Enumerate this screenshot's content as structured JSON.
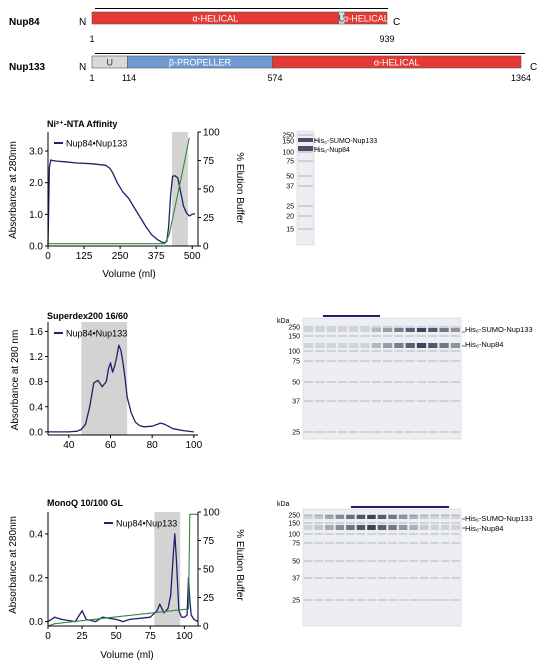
{
  "domains": {
    "nup84": {
      "name": "Nup84",
      "n_label": "N",
      "c_label": "C",
      "total_length": 939,
      "ticks": [
        "1",
        "939"
      ],
      "segments": [
        {
          "label": "α-HELICAL",
          "start": 1,
          "end": 785,
          "color": "#e53935"
        },
        {
          "label": "U",
          "start": 785,
          "end": 805,
          "color": "#d9d9d9"
        },
        {
          "label": "α-HELICAL",
          "start": 805,
          "end": 939,
          "color": "#e53935"
        }
      ]
    },
    "nup133": {
      "name": "Nup133",
      "n_label": "N",
      "c_label": "C",
      "total_length": 1364,
      "ticks": [
        "1",
        "114",
        "574",
        "1364"
      ],
      "segments": [
        {
          "label": "U",
          "start": 1,
          "end": 114,
          "color": "#d9d9d9"
        },
        {
          "label": "β-PROPELLER",
          "start": 114,
          "end": 574,
          "color": "#6f9bd1"
        },
        {
          "label": "α-HELICAL",
          "start": 574,
          "end": 1364,
          "color": "#e53935"
        }
      ]
    }
  },
  "chart_data": [
    {
      "type": "line",
      "title": "Ni²⁺-NTA Affinity",
      "xlabel": "Volume (ml)",
      "ylabel": "Absorbance at 280nm",
      "y2label": "% Elution Buffer",
      "xlim": [
        0,
        520
      ],
      "ylim": [
        0,
        3.6
      ],
      "y2lim": [
        0,
        100
      ],
      "xticks": [
        "0",
        "125",
        "250",
        "375",
        "500"
      ],
      "yticks": [
        "0.0",
        "1.0",
        "2.0",
        "3.0"
      ],
      "y2ticks": [
        "0",
        "25",
        "50",
        "75",
        "100"
      ],
      "legend": "top-left",
      "shaded_region": [
        430,
        485
      ],
      "series": [
        {
          "name": "Nup84•Nup133",
          "color": "#1f1f6b",
          "axis": "left",
          "x": [
            0,
            5,
            10,
            15,
            30,
            60,
            100,
            150,
            200,
            215,
            225,
            240,
            260,
            280,
            300,
            320,
            340,
            360,
            380,
            395,
            405,
            412,
            418,
            425,
            432,
            440,
            450,
            460,
            470,
            480,
            490,
            500,
            510
          ],
          "y": [
            0.05,
            2.5,
            2.72,
            2.7,
            2.68,
            2.66,
            2.62,
            2.6,
            2.55,
            2.45,
            2.3,
            2.0,
            1.7,
            1.5,
            1.2,
            0.9,
            0.6,
            0.35,
            0.2,
            0.12,
            0.1,
            0.15,
            0.6,
            1.6,
            2.2,
            2.22,
            2.15,
            1.7,
            1.25,
            1.05,
            0.95,
            1.0,
            1.02
          ]
        },
        {
          "name": "% Elution Buffer",
          "color": "#2e8b3c",
          "axis": "right",
          "x": [
            0,
            405,
            420,
            470,
            490
          ],
          "y": [
            2,
            2,
            10,
            70,
            95
          ]
        }
      ]
    },
    {
      "type": "line",
      "title": "Superdex200 16/60",
      "xlabel": "",
      "ylabel": "Absorbance at 280 nm",
      "xlim": [
        30,
        102
      ],
      "ylim": [
        -0.05,
        1.75
      ],
      "xticks": [
        "40",
        "60",
        "80",
        "100"
      ],
      "yticks": [
        "0.0",
        "0.4",
        "0.8",
        "1.2",
        "1.6"
      ],
      "legend": "top-left",
      "shaded_region": [
        46,
        68
      ],
      "series": [
        {
          "name": "Nup84•Nup133",
          "color": "#1f1f6b",
          "axis": "left",
          "x": [
            30,
            40,
            44,
            46,
            48,
            50,
            52,
            54,
            56,
            58,
            59,
            60,
            61,
            62,
            63,
            64,
            65,
            66,
            67,
            68,
            70,
            72,
            74,
            76,
            80,
            84,
            86,
            90,
            95,
            100
          ],
          "y": [
            0.0,
            0.0,
            0.01,
            0.04,
            0.12,
            0.4,
            0.78,
            0.82,
            0.72,
            0.8,
            1.0,
            1.1,
            0.95,
            1.05,
            1.2,
            1.38,
            1.3,
            1.1,
            0.85,
            0.55,
            0.3,
            0.15,
            0.1,
            0.08,
            0.09,
            0.14,
            0.12,
            0.05,
            0.02,
            0.0
          ]
        }
      ]
    },
    {
      "type": "line",
      "title": "MonoQ 10/100 GL",
      "xlabel": "Volume (ml)",
      "ylabel": "Absorbance at 280nm",
      "y2label": "% Elution Buffer",
      "xlim": [
        0,
        110
      ],
      "ylim": [
        -0.02,
        0.5
      ],
      "y2lim": [
        0,
        100
      ],
      "xticks": [
        "0",
        "25",
        "50",
        "75",
        "100"
      ],
      "yticks": [
        "0.0",
        "0.2",
        "0.4"
      ],
      "y2ticks": [
        "0",
        "25",
        "50",
        "75",
        "100"
      ],
      "legend": "top-right",
      "shaded_region": [
        78,
        97
      ],
      "series": [
        {
          "name": "Nup84•Nup133",
          "color": "#1f1f6b",
          "axis": "left",
          "x": [
            0,
            5,
            10,
            20,
            23,
            25,
            28,
            35,
            40,
            50,
            55,
            60,
            75,
            80,
            82,
            85,
            88,
            90,
            92,
            93,
            94,
            96,
            98,
            100,
            102,
            103,
            104,
            105,
            107,
            110
          ],
          "y": [
            0.0,
            0.02,
            0.01,
            0.0,
            0.03,
            0.05,
            0.01,
            0.0,
            0.02,
            0.01,
            0.0,
            0.01,
            0.02,
            0.05,
            0.08,
            0.04,
            0.06,
            0.12,
            0.32,
            0.4,
            0.3,
            0.05,
            0.02,
            0.02,
            0.03,
            0.2,
            0.1,
            0.03,
            0.01,
            0.0
          ]
        },
        {
          "name": "% Elution Buffer",
          "color": "#2e8b3c",
          "axis": "right",
          "x": [
            0,
            5,
            103,
            104,
            108,
            110
          ],
          "y": [
            0,
            2,
            15,
            98,
            98,
            98
          ]
        }
      ]
    }
  ],
  "gels": [
    {
      "kda_label": "",
      "markers": [
        "250",
        "150",
        "100",
        "75",
        "50",
        "37",
        "25",
        "20",
        "15"
      ],
      "bands": [
        "His₆-SUMO-Nup133",
        "His₆-Nup84"
      ],
      "lanes": 1,
      "has_bar": false
    },
    {
      "kda_label": "kDa",
      "markers": [
        "250",
        "150",
        "100",
        "75",
        "50",
        "37",
        "25"
      ],
      "bands": [
        "His₆-SUMO-Nup133",
        "His₆-Nup84"
      ],
      "lanes": 14,
      "has_bar": true
    },
    {
      "kda_label": "kDa",
      "markers": [
        "250",
        "150",
        "100",
        "75",
        "50",
        "37",
        "25"
      ],
      "bands": [
        "His₆-SUMO-Nup133",
        "His₆-Nup84"
      ],
      "lanes": 15,
      "has_bar": true
    }
  ]
}
